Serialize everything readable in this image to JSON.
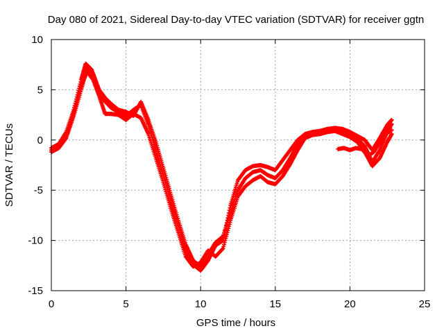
{
  "chart_data": {
    "type": "scatter",
    "title": "Day 080 of 2021, Sidereal Day-to-day VTEC variation (SDTVAR) for receiver ggtn",
    "xlabel": "GPS time / hours",
    "ylabel": "SDTVAR / TECUs",
    "xlim": [
      0,
      25
    ],
    "ylim": [
      -15,
      10
    ],
    "x_ticks": [
      0,
      5,
      10,
      15,
      20,
      25
    ],
    "y_ticks": [
      -15,
      -10,
      -5,
      0,
      5,
      10
    ],
    "x_tick_labels": [
      "0",
      "5",
      "10",
      "15",
      "20",
      "25"
    ],
    "y_tick_labels": [
      "-15",
      "-10",
      "-5",
      "0",
      "5",
      "10"
    ],
    "grid": true,
    "marker": "plus",
    "series": [
      {
        "name": "trace-1",
        "color": "#ff0000",
        "points": [
          [
            0,
            -0.8
          ],
          [
            0.5,
            -0.4
          ],
          [
            1.0,
            0.8
          ],
          [
            1.5,
            3.0
          ],
          [
            2.0,
            6.0
          ],
          [
            2.3,
            7.6
          ],
          [
            2.7,
            7.0
          ],
          [
            3.0,
            5.6
          ],
          [
            3.5,
            4.0
          ],
          [
            4.0,
            3.2
          ],
          [
            4.5,
            2.8
          ],
          [
            5.0,
            2.4
          ],
          [
            5.5,
            3.0
          ],
          [
            6.0,
            3.5
          ],
          [
            6.5,
            1.5
          ],
          [
            7.0,
            -1.0
          ],
          [
            7.5,
            -3.5
          ],
          [
            8.0,
            -6.0
          ],
          [
            8.5,
            -8.5
          ],
          [
            9.0,
            -11.0
          ],
          [
            9.5,
            -12.4
          ],
          [
            10.0,
            -13.0
          ],
          [
            10.5,
            -12.0
          ],
          [
            11.0,
            -10.5
          ],
          [
            11.5,
            -10.0
          ],
          [
            12.0,
            -6.5
          ],
          [
            12.5,
            -4.0
          ],
          [
            13.0,
            -3.0
          ],
          [
            13.5,
            -2.6
          ],
          [
            14.0,
            -2.5
          ],
          [
            14.5,
            -2.7
          ],
          [
            15.0,
            -3.0
          ],
          [
            15.5,
            -2.0
          ],
          [
            16.0,
            -1.0
          ],
          [
            16.5,
            0.0
          ],
          [
            17.0,
            0.6
          ],
          [
            17.5,
            0.8
          ],
          [
            18.0,
            0.9
          ],
          [
            18.5,
            1.1
          ],
          [
            19.0,
            1.2
          ],
          [
            19.5,
            1.1
          ],
          [
            20.0,
            0.8
          ],
          [
            20.5,
            0.4
          ],
          [
            21.0,
            0.0
          ],
          [
            21.5,
            -1.0
          ],
          [
            22.0,
            0.2
          ],
          [
            22.5,
            1.5
          ],
          [
            22.8,
            2.0
          ]
        ]
      },
      {
        "name": "trace-2",
        "color": "#ff0000",
        "points": [
          [
            0,
            -1.2
          ],
          [
            0.5,
            -0.8
          ],
          [
            1.0,
            0.2
          ],
          [
            1.5,
            2.4
          ],
          [
            2.0,
            5.0
          ],
          [
            2.4,
            7.2
          ],
          [
            2.8,
            6.6
          ],
          [
            3.2,
            5.0
          ],
          [
            3.6,
            4.2
          ],
          [
            4.0,
            3.6
          ],
          [
            4.5,
            3.0
          ],
          [
            5.0,
            2.8
          ],
          [
            5.5,
            2.4
          ],
          [
            6.0,
            3.8
          ],
          [
            6.5,
            2.0
          ],
          [
            7.0,
            -0.2
          ],
          [
            7.5,
            -2.8
          ],
          [
            8.0,
            -5.4
          ],
          [
            8.5,
            -8.0
          ],
          [
            9.0,
            -10.4
          ],
          [
            9.5,
            -12.0
          ],
          [
            10.0,
            -12.6
          ],
          [
            10.5,
            -11.4
          ],
          [
            11.0,
            -10.2
          ],
          [
            11.5,
            -9.6
          ],
          [
            12.0,
            -7.2
          ],
          [
            12.5,
            -5.0
          ],
          [
            13.0,
            -3.8
          ],
          [
            13.5,
            -3.2
          ],
          [
            14.0,
            -3.0
          ],
          [
            14.5,
            -3.5
          ],
          [
            15.0,
            -3.8
          ],
          [
            15.5,
            -3.0
          ],
          [
            16.0,
            -1.8
          ],
          [
            16.5,
            -0.4
          ],
          [
            17.0,
            0.4
          ],
          [
            17.5,
            0.6
          ],
          [
            18.0,
            0.8
          ],
          [
            18.5,
            0.9
          ],
          [
            19.0,
            1.0
          ],
          [
            19.5,
            0.9
          ],
          [
            20.0,
            0.6
          ],
          [
            20.5,
            0.1
          ],
          [
            21.0,
            -0.6
          ],
          [
            21.5,
            -2.2
          ],
          [
            22.0,
            -1.0
          ],
          [
            22.5,
            0.8
          ],
          [
            22.8,
            1.6
          ]
        ]
      },
      {
        "name": "trace-3",
        "color": "#ff0000",
        "points": [
          [
            0,
            -1.0
          ],
          [
            0.5,
            -0.6
          ],
          [
            1.0,
            0.4
          ],
          [
            1.5,
            2.7
          ],
          [
            2.0,
            5.4
          ],
          [
            2.4,
            6.8
          ],
          [
            2.8,
            6.0
          ],
          [
            3.2,
            4.4
          ],
          [
            3.6,
            2.6
          ],
          [
            4.0,
            2.6
          ],
          [
            4.5,
            2.5
          ],
          [
            5.0,
            2.0
          ],
          [
            5.5,
            2.6
          ],
          [
            6.0,
            2.2
          ],
          [
            6.5,
            0.6
          ],
          [
            7.0,
            -1.8
          ],
          [
            7.5,
            -4.2
          ],
          [
            8.0,
            -6.8
          ],
          [
            8.5,
            -9.2
          ],
          [
            9.0,
            -11.6
          ],
          [
            9.5,
            -12.6
          ],
          [
            10.0,
            -12.2
          ],
          [
            10.5,
            -11.0
          ],
          [
            11.0,
            -11.6
          ],
          [
            11.5,
            -10.8
          ],
          [
            12.0,
            -8.0
          ],
          [
            12.5,
            -5.6
          ],
          [
            13.0,
            -4.6
          ],
          [
            13.5,
            -4.0
          ],
          [
            14.0,
            -3.6
          ],
          [
            14.5,
            -4.2
          ],
          [
            15.0,
            -4.4
          ],
          [
            15.5,
            -3.6
          ],
          [
            16.0,
            -2.4
          ],
          [
            16.5,
            -1.0
          ],
          [
            17.0,
            0.2
          ],
          [
            17.5,
            0.5
          ],
          [
            18.0,
            0.6
          ],
          [
            18.5,
            0.8
          ],
          [
            19.0,
            0.9
          ],
          [
            19.5,
            0.6
          ],
          [
            20.0,
            0.3
          ],
          [
            20.5,
            -0.2
          ],
          [
            21.0,
            -1.2
          ],
          [
            21.5,
            -2.6
          ],
          [
            22.0,
            -1.8
          ],
          [
            22.5,
            -0.2
          ],
          [
            22.8,
            0.6
          ]
        ]
      },
      {
        "name": "trace-4",
        "color": "#ff0000",
        "points": [
          [
            19.2,
            -0.9
          ],
          [
            19.6,
            -0.8
          ],
          [
            20.0,
            -1.0
          ],
          [
            20.4,
            -0.8
          ],
          [
            20.8,
            -0.9
          ],
          [
            21.2,
            -1.6
          ],
          [
            21.6,
            -1.2
          ],
          [
            22.0,
            -0.2
          ],
          [
            22.4,
            0.6
          ],
          [
            22.8,
            1.0
          ]
        ]
      }
    ]
  }
}
